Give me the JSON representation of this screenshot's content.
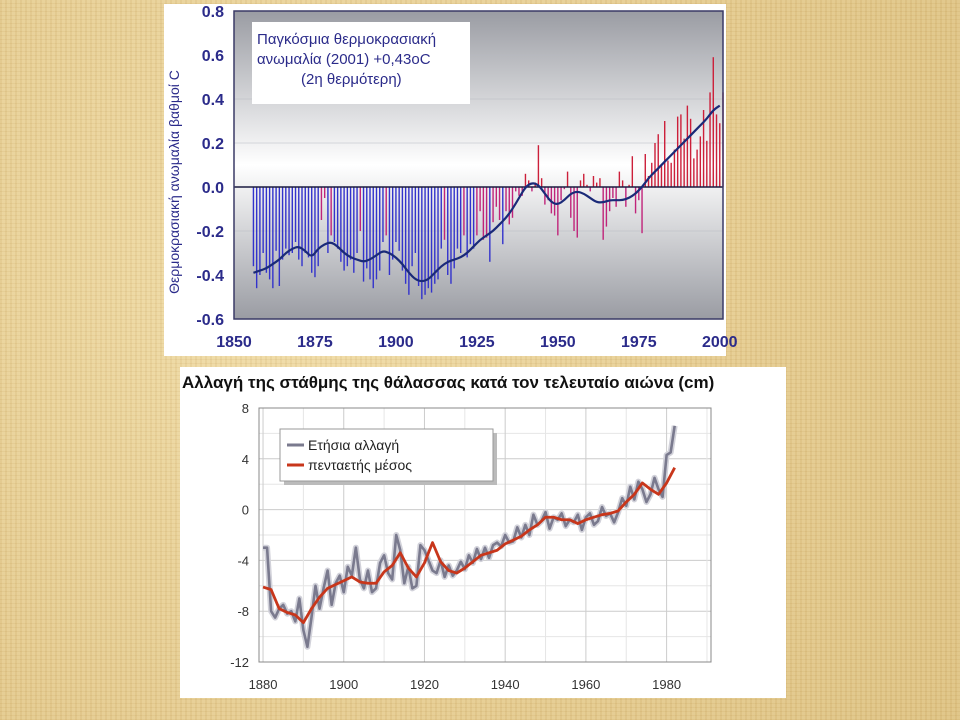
{
  "chart_data": [
    {
      "type": "bar",
      "subtype": "bar-with-smoothed-line",
      "annotation": [
        "Παγκόσμια θερμοκρασιακή",
        "ανωμαλία (2001) +0,43oC",
        "(2η θερμότερη)"
      ],
      "ylabel": "Θερμοκρασιακή ανωμαλία βαθμοί C",
      "xlabel": "",
      "xlim": [
        1850,
        2001
      ],
      "ylim": [
        -0.6,
        0.8
      ],
      "xticks": [
        1850,
        1875,
        1900,
        1925,
        1950,
        1975,
        2000
      ],
      "xtick_labels": [
        "1850",
        "1875",
        "1900",
        "1925",
        "1950",
        "1975",
        "2000"
      ],
      "yticks": [
        0.8,
        0.6,
        0.4,
        0.2,
        0.0,
        -0.2,
        -0.4,
        -0.6
      ],
      "ytick_labels": [
        "0.8",
        "0.6",
        "0.4",
        "0.2",
        "0.0",
        "-0.2",
        "-0.4",
        "-0.6"
      ],
      "colors": {
        "positive": "#cc1f3a",
        "negative": "#3333cc",
        "smooth": "#1a2a78"
      },
      "annual": {
        "years": [
          1856,
          1857,
          1858,
          1859,
          1860,
          1861,
          1862,
          1863,
          1864,
          1865,
          1866,
          1867,
          1868,
          1869,
          1870,
          1871,
          1872,
          1873,
          1874,
          1875,
          1876,
          1877,
          1878,
          1879,
          1880,
          1881,
          1882,
          1883,
          1884,
          1885,
          1886,
          1887,
          1888,
          1889,
          1890,
          1891,
          1892,
          1893,
          1894,
          1895,
          1896,
          1897,
          1898,
          1899,
          1900,
          1901,
          1902,
          1903,
          1904,
          1905,
          1906,
          1907,
          1908,
          1909,
          1910,
          1911,
          1912,
          1913,
          1914,
          1915,
          1916,
          1917,
          1918,
          1919,
          1920,
          1921,
          1922,
          1923,
          1924,
          1925,
          1926,
          1927,
          1928,
          1929,
          1930,
          1931,
          1932,
          1933,
          1934,
          1935,
          1936,
          1937,
          1938,
          1939,
          1940,
          1941,
          1942,
          1943,
          1944,
          1945,
          1946,
          1947,
          1948,
          1949,
          1950,
          1951,
          1952,
          1953,
          1954,
          1955,
          1956,
          1957,
          1958,
          1959,
          1960,
          1961,
          1962,
          1963,
          1964,
          1965,
          1966,
          1967,
          1968,
          1969,
          1970,
          1971,
          1972,
          1973,
          1974,
          1975,
          1976,
          1977,
          1978,
          1979,
          1980,
          1981,
          1982,
          1983,
          1984,
          1985,
          1986,
          1987,
          1988,
          1989,
          1990,
          1991,
          1992,
          1993,
          1994,
          1995,
          1996,
          1997,
          1998,
          1999,
          2000,
          2001
        ],
        "values": [
          -0.36,
          -0.46,
          -0.4,
          -0.3,
          -0.39,
          -0.42,
          -0.46,
          -0.29,
          -0.45,
          -0.33,
          -0.28,
          -0.31,
          -0.3,
          -0.25,
          -0.33,
          -0.36,
          -0.3,
          -0.32,
          -0.39,
          -0.41,
          -0.36,
          -0.15,
          -0.05,
          -0.3,
          -0.22,
          -0.25,
          -0.28,
          -0.34,
          -0.38,
          -0.36,
          -0.33,
          -0.39,
          -0.3,
          -0.2,
          -0.43,
          -0.37,
          -0.42,
          -0.46,
          -0.42,
          -0.38,
          -0.25,
          -0.22,
          -0.4,
          -0.33,
          -0.25,
          -0.29,
          -0.38,
          -0.44,
          -0.49,
          -0.36,
          -0.3,
          -0.45,
          -0.51,
          -0.49,
          -0.46,
          -0.48,
          -0.44,
          -0.42,
          -0.28,
          -0.24,
          -0.4,
          -0.44,
          -0.37,
          -0.28,
          -0.3,
          -0.22,
          -0.32,
          -0.26,
          -0.28,
          -0.22,
          -0.11,
          -0.24,
          -0.23,
          -0.34,
          -0.16,
          -0.09,
          -0.15,
          -0.26,
          -0.11,
          -0.17,
          -0.14,
          -0.02,
          -0.04,
          -0.04,
          0.06,
          0.03,
          -0.02,
          0.02,
          0.19,
          0.04,
          -0.08,
          -0.06,
          -0.12,
          -0.13,
          -0.22,
          -0.06,
          -0.01,
          0.07,
          -0.14,
          -0.2,
          -0.23,
          0.03,
          0.06,
          0.01,
          -0.02,
          0.05,
          0.02,
          0.04,
          -0.24,
          -0.18,
          -0.11,
          -0.05,
          -0.09,
          0.07,
          0.03,
          -0.09,
          0.01,
          0.14,
          -0.12,
          -0.06,
          -0.21,
          0.15,
          0.05,
          0.11,
          0.2,
          0.24,
          0.1,
          0.3,
          0.12,
          0.11,
          0.17,
          0.32,
          0.33,
          0.22,
          0.37,
          0.31,
          0.13,
          0.17,
          0.23,
          0.35,
          0.21,
          0.43,
          0.59,
          0.33,
          0.29,
          0.43
        ]
      },
      "smoothed": {
        "x": [
          1856,
          1858,
          1860,
          1862,
          1864,
          1866,
          1868,
          1870,
          1872,
          1874,
          1876,
          1878,
          1880,
          1882,
          1884,
          1886,
          1888,
          1890,
          1892,
          1894,
          1896,
          1898,
          1900,
          1902,
          1904,
          1906,
          1908,
          1910,
          1912,
          1914,
          1916,
          1918,
          1920,
          1922,
          1924,
          1926,
          1928,
          1930,
          1932,
          1934,
          1936,
          1938,
          1940,
          1942,
          1944,
          1946,
          1948,
          1950,
          1952,
          1954,
          1956,
          1958,
          1960,
          1962,
          1964,
          1966,
          1968,
          1970,
          1972,
          1974,
          1976,
          1978,
          1980,
          1982,
          1984,
          1986,
          1988,
          1990,
          1992,
          1994,
          1996,
          1998,
          2000
        ],
        "y": [
          -0.39,
          -0.38,
          -0.37,
          -0.35,
          -0.33,
          -0.3,
          -0.28,
          -0.27,
          -0.29,
          -0.32,
          -0.28,
          -0.26,
          -0.25,
          -0.27,
          -0.3,
          -0.32,
          -0.33,
          -0.34,
          -0.33,
          -0.31,
          -0.29,
          -0.3,
          -0.32,
          -0.35,
          -0.39,
          -0.42,
          -0.43,
          -0.42,
          -0.39,
          -0.36,
          -0.34,
          -0.33,
          -0.32,
          -0.3,
          -0.27,
          -0.24,
          -0.22,
          -0.2,
          -0.17,
          -0.14,
          -0.1,
          -0.05,
          0.0,
          0.02,
          0.01,
          -0.03,
          -0.07,
          -0.08,
          -0.06,
          -0.03,
          -0.02,
          -0.03,
          -0.05,
          -0.07,
          -0.07,
          -0.06,
          -0.06,
          -0.06,
          -0.05,
          -0.03,
          0.0,
          0.04,
          0.07,
          0.1,
          0.13,
          0.16,
          0.19,
          0.22,
          0.25,
          0.28,
          0.31,
          0.35,
          0.37
        ]
      }
    },
    {
      "type": "line",
      "title": "Αλλαγή της στάθμης της θάλασσας κατά τον τελευταίο αιώνα (cm)",
      "xlabel": "",
      "ylabel": "",
      "xlim": [
        1879,
        1991
      ],
      "ylim": [
        -12,
        8
      ],
      "xticks": [
        1880,
        1900,
        1920,
        1940,
        1960,
        1980
      ],
      "xtick_labels": [
        "1880",
        "1900",
        "1920",
        "1940",
        "1960",
        "1980"
      ],
      "yticks": [
        8,
        4,
        0,
        -4,
        -8,
        -12
      ],
      "ytick_labels": [
        "8",
        "4",
        "0",
        "-4",
        "-8",
        "-12"
      ],
      "grid": true,
      "legend": {
        "position": "top-left"
      },
      "series": [
        {
          "name": "Ετήσια αλλαγή",
          "color": "#7a7a8e",
          "x": [
            1880,
            1881,
            1882,
            1883,
            1884,
            1885,
            1886,
            1887,
            1888,
            1889,
            1890,
            1891,
            1892,
            1893,
            1894,
            1895,
            1896,
            1897,
            1898,
            1899,
            1900,
            1901,
            1902,
            1903,
            1904,
            1905,
            1906,
            1907,
            1908,
            1909,
            1910,
            1911,
            1912,
            1913,
            1914,
            1915,
            1916,
            1917,
            1918,
            1919,
            1920,
            1921,
            1922,
            1923,
            1924,
            1925,
            1926,
            1927,
            1928,
            1929,
            1930,
            1931,
            1932,
            1933,
            1934,
            1935,
            1936,
            1937,
            1938,
            1939,
            1940,
            1941,
            1942,
            1943,
            1944,
            1945,
            1946,
            1947,
            1948,
            1949,
            1950,
            1951,
            1952,
            1953,
            1954,
            1955,
            1956,
            1957,
            1958,
            1959,
            1960,
            1961,
            1962,
            1963,
            1964,
            1965,
            1966,
            1967,
            1968,
            1969,
            1970,
            1971,
            1972,
            1973,
            1974,
            1975,
            1976,
            1977,
            1978,
            1979,
            1980,
            1981,
            1982
          ],
          "y": [
            -3.0,
            -3.0,
            -8.0,
            -8.5,
            -7.8,
            -7.5,
            -8.2,
            -8.0,
            -8.8,
            -7.0,
            -9.5,
            -10.8,
            -8.5,
            -6.0,
            -7.8,
            -6.2,
            -4.8,
            -7.5,
            -5.8,
            -5.2,
            -6.5,
            -4.5,
            -5.2,
            -3.0,
            -5.5,
            -6.2,
            -4.8,
            -6.5,
            -6.2,
            -4.2,
            -3.6,
            -5.0,
            -5.5,
            -2.0,
            -3.2,
            -5.8,
            -4.5,
            -6.2,
            -6.0,
            -2.8,
            -3.2,
            -4.0,
            -4.8,
            -5.0,
            -4.0,
            -5.3,
            -4.4,
            -5.2,
            -4.8,
            -4.1,
            -4.7,
            -3.6,
            -4.2,
            -3.1,
            -3.9,
            -3.0,
            -3.8,
            -2.8,
            -2.6,
            -2.9,
            -2.0,
            -2.6,
            -2.5,
            -1.4,
            -2.2,
            -1.2,
            -2.0,
            -0.4,
            -1.2,
            -0.9,
            -0.2,
            -1.5,
            -0.6,
            -0.8,
            -0.3,
            -1.3,
            -0.8,
            -1.0,
            -0.4,
            -1.6,
            -0.6,
            -0.3,
            -1.2,
            -0.9,
            0.2,
            -0.5,
            -0.3,
            -1.0,
            -0.2,
            0.9,
            0.3,
            1.8,
            0.8,
            2.2,
            1.6,
            0.6,
            1.2,
            2.5,
            1.6,
            1.0,
            4.3,
            4.5,
            6.6
          ]
        },
        {
          "name": "πενταετής μέσος",
          "color": "#c8361b",
          "x": [
            1880,
            1882,
            1884,
            1886,
            1888,
            1890,
            1892,
            1894,
            1896,
            1898,
            1900,
            1902,
            1904,
            1906,
            1908,
            1910,
            1912,
            1914,
            1916,
            1918,
            1920,
            1922,
            1924,
            1926,
            1928,
            1930,
            1932,
            1934,
            1936,
            1938,
            1940,
            1942,
            1944,
            1946,
            1948,
            1950,
            1952,
            1954,
            1956,
            1958,
            1960,
            1962,
            1964,
            1966,
            1968,
            1970,
            1972,
            1974,
            1976,
            1978,
            1980,
            1982
          ],
          "y": [
            -6.1,
            -6.3,
            -7.8,
            -8.1,
            -8.3,
            -8.9,
            -7.8,
            -6.9,
            -6.2,
            -5.9,
            -5.6,
            -5.3,
            -5.7,
            -5.8,
            -5.8,
            -4.9,
            -4.4,
            -3.4,
            -4.6,
            -5.3,
            -4.2,
            -2.6,
            -4.1,
            -4.8,
            -5.0,
            -4.6,
            -4.1,
            -3.6,
            -3.4,
            -3.2,
            -2.7,
            -2.4,
            -2.1,
            -1.6,
            -1.2,
            -0.6,
            -0.6,
            -0.8,
            -0.8,
            -1.1,
            -0.8,
            -0.6,
            -0.4,
            -0.3,
            -0.1,
            0.6,
            1.2,
            2.1,
            1.6,
            1.2,
            2.1,
            3.3
          ]
        }
      ]
    }
  ]
}
